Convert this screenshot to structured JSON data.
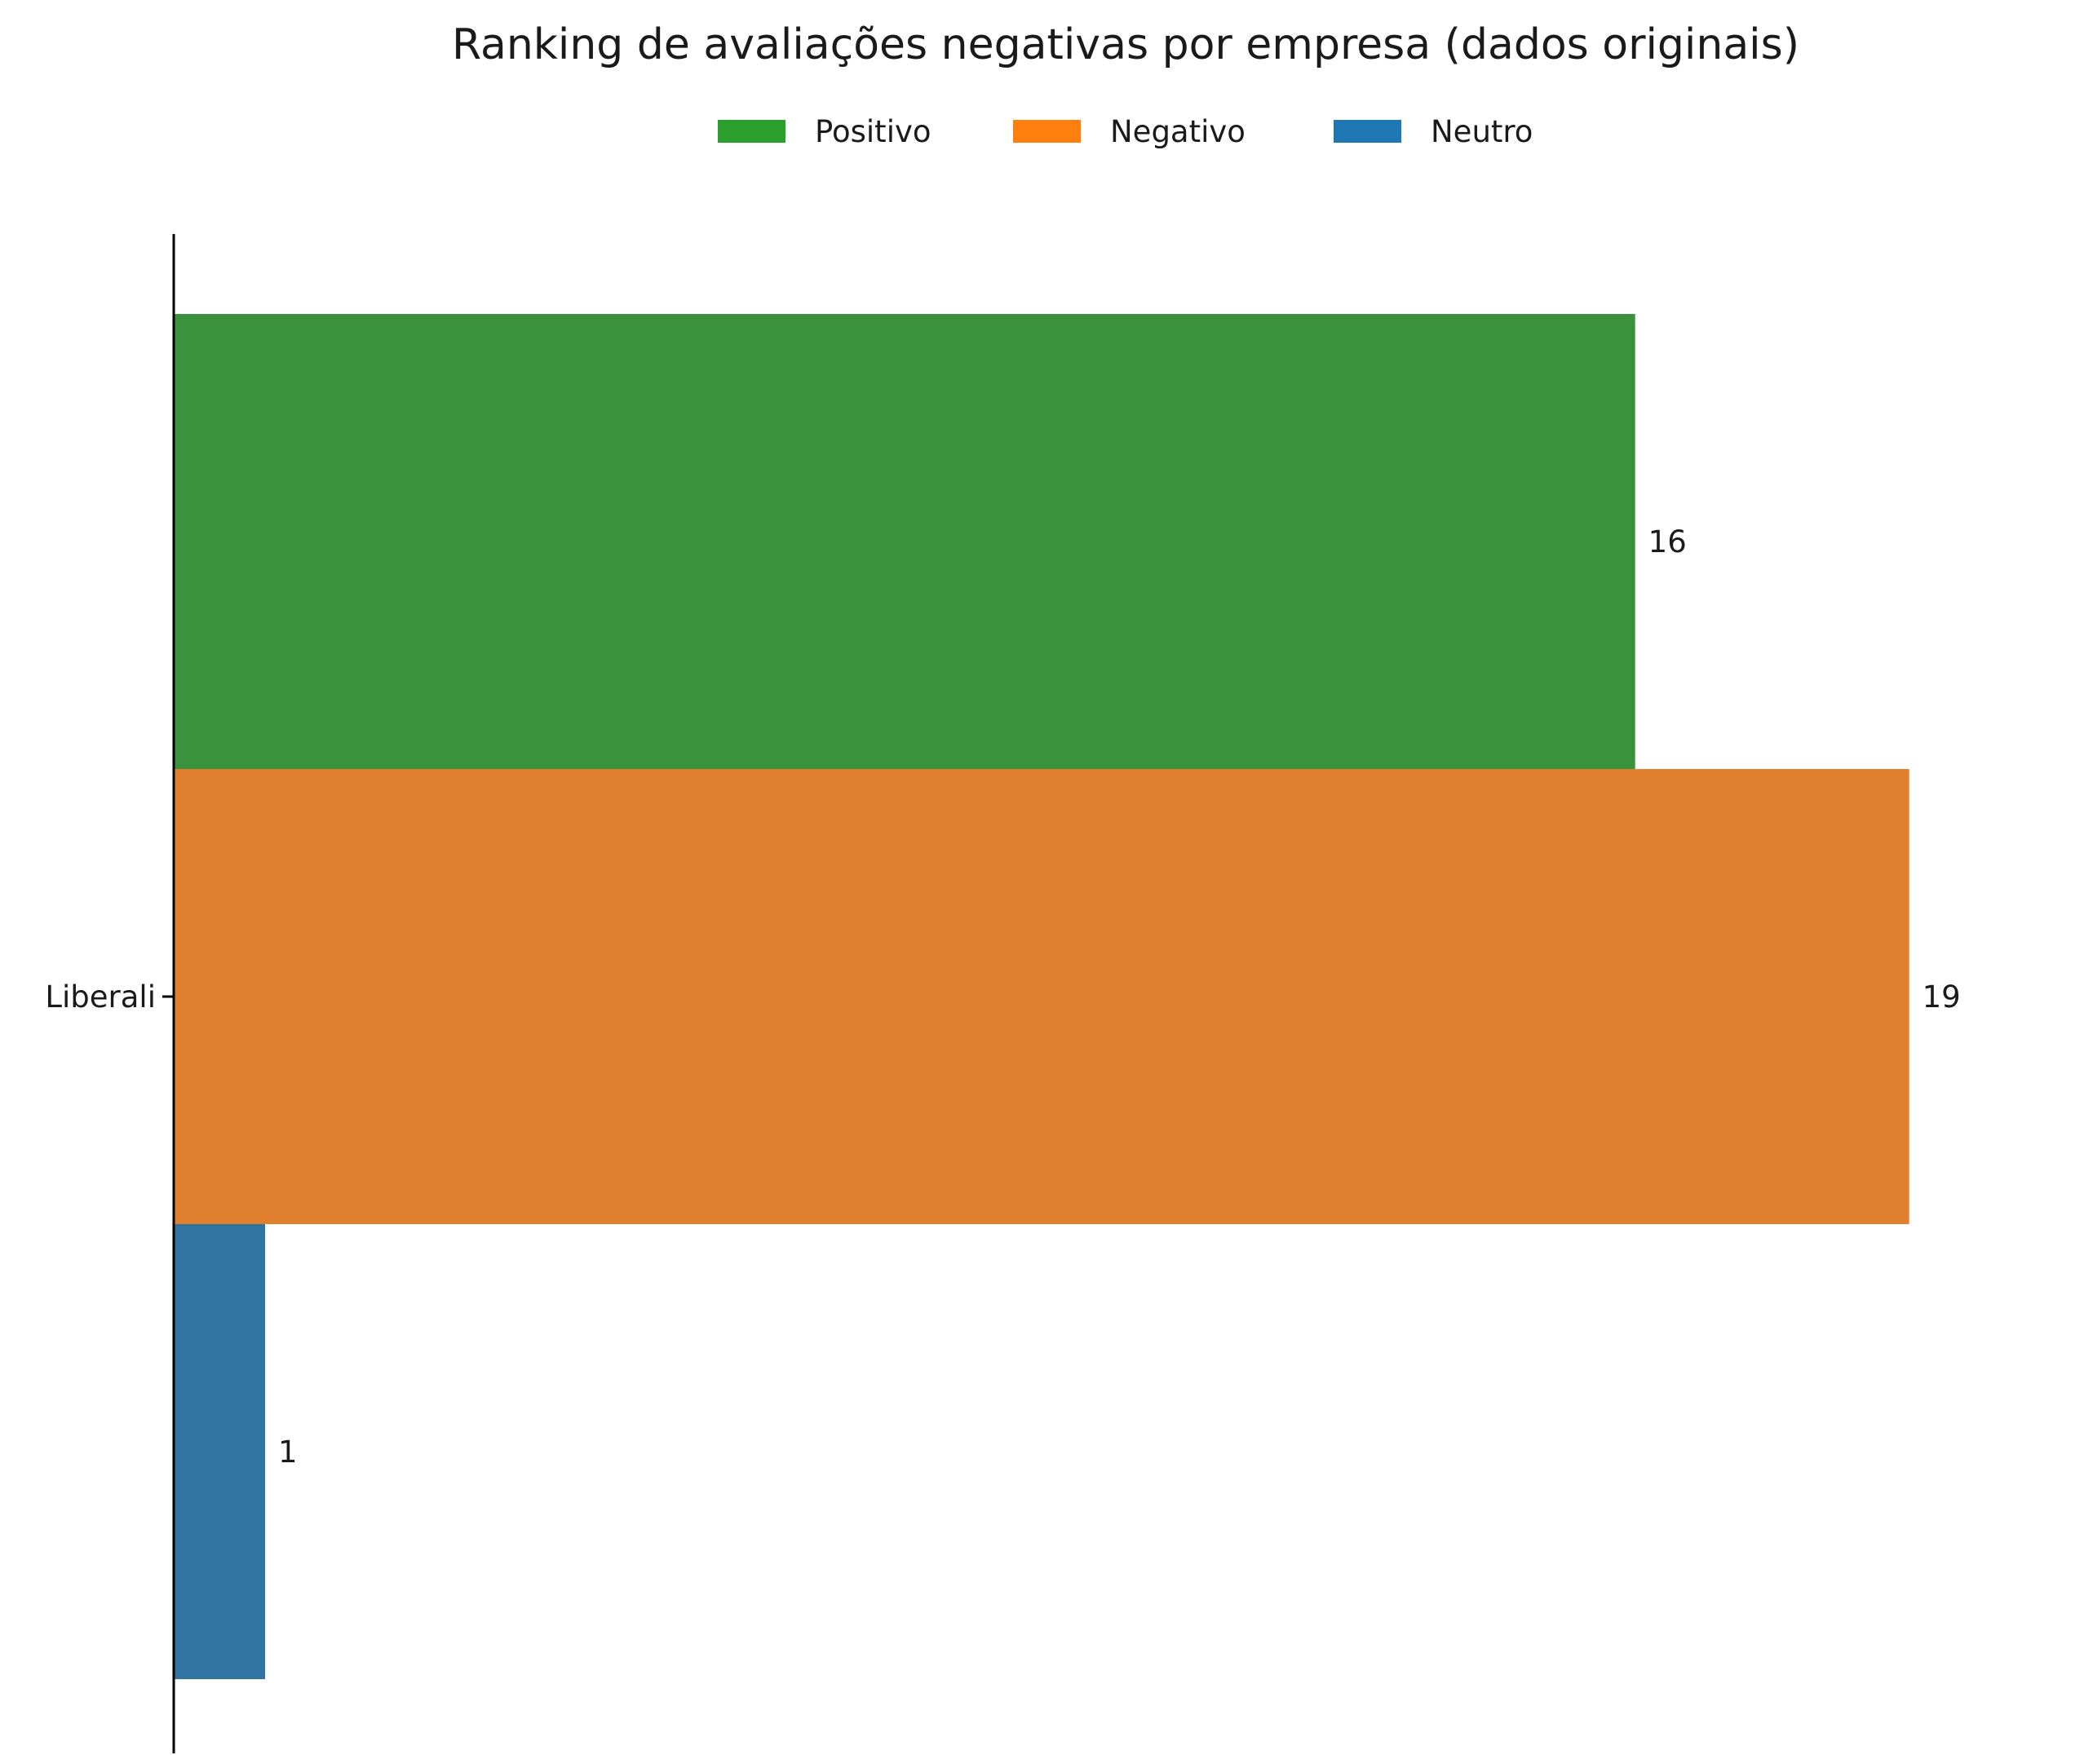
{
  "chart_data": {
    "type": "bar",
    "orientation": "horizontal",
    "title": "Ranking de avaliações negativas por empresa (dados originais)",
    "categories": [
      "Liberali"
    ],
    "series": [
      {
        "name": "Positivo",
        "values": [
          16
        ],
        "legend_color": "#2ca02c",
        "bar_color": "#3b923c"
      },
      {
        "name": "Negativo",
        "values": [
          19
        ],
        "legend_color": "#ff7f0e",
        "bar_color": "#e0802e"
      },
      {
        "name": "Neutro",
        "values": [
          1
        ],
        "legend_color": "#1f77b4",
        "bar_color": "#3274a1"
      }
    ],
    "data_labels": [
      "16",
      "19",
      "1"
    ],
    "xlim": [
      0,
      19.95
    ],
    "xlabel": "",
    "ylabel": "",
    "grid": false,
    "legend_position": "top-center"
  }
}
